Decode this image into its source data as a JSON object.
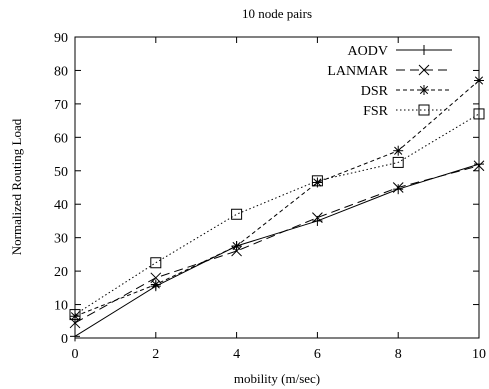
{
  "chart_data": {
    "type": "line",
    "title": "10 node pairs",
    "xlabel": "mobility (m/sec)",
    "ylabel": "Normalized Routing Load",
    "xlim": [
      0,
      10
    ],
    "ylim": [
      0,
      90
    ],
    "x_ticks": [
      0,
      2,
      4,
      6,
      8,
      10
    ],
    "y_ticks": [
      0,
      10,
      20,
      30,
      40,
      50,
      60,
      70,
      80,
      90
    ],
    "grid": false,
    "legend_position": "top-right",
    "x": [
      0,
      2,
      4,
      6,
      8,
      10
    ],
    "series": [
      {
        "name": "AODV",
        "values": [
          0.5,
          15.5,
          27.5,
          35,
          44.5,
          52
        ],
        "dash": "solid",
        "marker": "plus"
      },
      {
        "name": "LANMAR",
        "values": [
          4.5,
          18,
          26,
          36,
          45,
          51.5
        ],
        "dash": "long-dash",
        "marker": "x"
      },
      {
        "name": "DSR",
        "values": [
          6.5,
          16,
          27.5,
          46.5,
          56,
          77
        ],
        "dash": "short-dash",
        "marker": "star"
      },
      {
        "name": "FSR",
        "values": [
          7,
          22.5,
          37,
          47,
          52.5,
          67
        ],
        "dash": "dotted",
        "marker": "square"
      }
    ]
  }
}
